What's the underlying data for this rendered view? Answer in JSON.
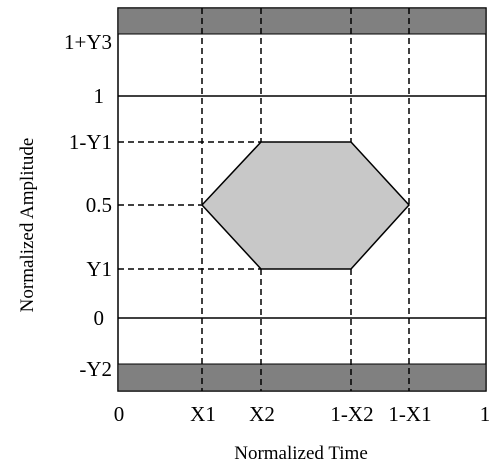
{
  "diagram": {
    "colors": {
      "mask_fill": "#808080",
      "hexagon_fill": "#c8c8c8",
      "line": "#000000",
      "background": "#ffffff"
    },
    "x_axis": {
      "title": "Normalized Time",
      "ticks": [
        "0",
        "X1",
        "X2",
        "1-X2",
        "1-X1",
        "1"
      ]
    },
    "y_axis": {
      "title": "Normalized Amplitude",
      "ticks": [
        "1+Y3",
        "1",
        "1-Y1",
        "0.5",
        "Y1",
        "0",
        "-Y2"
      ]
    }
  }
}
